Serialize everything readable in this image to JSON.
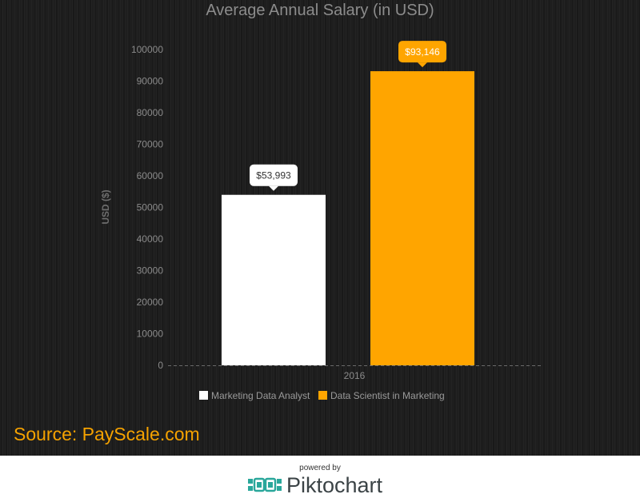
{
  "chart_data": {
    "type": "bar",
    "title": "Average Annual Salary (in USD)",
    "xlabel": "",
    "ylabel": "USD ($)",
    "categories": [
      "2016"
    ],
    "ylim": [
      0,
      100000
    ],
    "yticks": [
      "0",
      "10000",
      "20000",
      "30000",
      "40000",
      "50000",
      "60000",
      "70000",
      "80000",
      "90000",
      "100000"
    ],
    "series": [
      {
        "name": "Marketing Data Analyst",
        "values": [
          53993
        ],
        "label": "$53,993",
        "color": "#ffffff"
      },
      {
        "name": "Data Scientist in Marketing",
        "values": [
          93146
        ],
        "label": "$93,146",
        "color": "#ffa500"
      }
    ],
    "grid": false,
    "legend": "bottom"
  },
  "source": "Source: PayScale.com",
  "footer": {
    "powered_by": "powered by",
    "brand": "Piktochart"
  }
}
